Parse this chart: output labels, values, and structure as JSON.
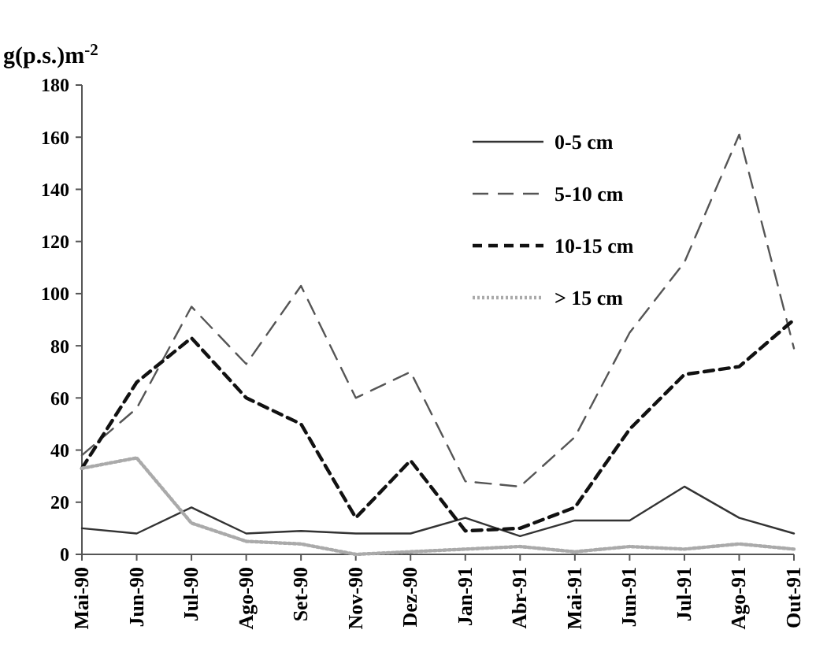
{
  "chart_data": {
    "type": "line",
    "ylabel": "g(p.s.)m$^{-2}$",
    "categories": [
      "Mai-90",
      "Jun-90",
      "Jul-90",
      "Ago-90",
      "Set-90",
      "Nov-90",
      "Dez-90",
      "Jan-91",
      "Abr-91",
      "Mai-91",
      "Jun-91",
      "Jul-91",
      "Ago-91",
      "Out-91"
    ],
    "ylim": [
      0,
      180
    ],
    "yticks": [
      0,
      20,
      40,
      60,
      80,
      100,
      120,
      140,
      160,
      180
    ],
    "grid": false,
    "legend": "top right",
    "series": [
      {
        "name": "0-5 cm",
        "color": "#333333",
        "line_style": "solid",
        "values": [
          10,
          8,
          18,
          8,
          9,
          8,
          8,
          14,
          7,
          13,
          13,
          26,
          14,
          8
        ]
      },
      {
        "name": "5-10 cm",
        "color": "#555555",
        "line_style": "longdash",
        "values": [
          38,
          56,
          95,
          73,
          103,
          60,
          70,
          28,
          26,
          45,
          85,
          112,
          161,
          79
        ]
      },
      {
        "name": "10-15 cm",
        "color": "#111111",
        "line_style": "dashed",
        "values": [
          33,
          66,
          83,
          60,
          50,
          14,
          36,
          9,
          10,
          18,
          48,
          69,
          72,
          90
        ]
      },
      {
        "name": "> 15 cm",
        "color": "#aaaaaa",
        "line_style": "dotted",
        "values": [
          33,
          37,
          12,
          5,
          4,
          0,
          1,
          2,
          3,
          1,
          3,
          2,
          4,
          2
        ]
      }
    ]
  }
}
